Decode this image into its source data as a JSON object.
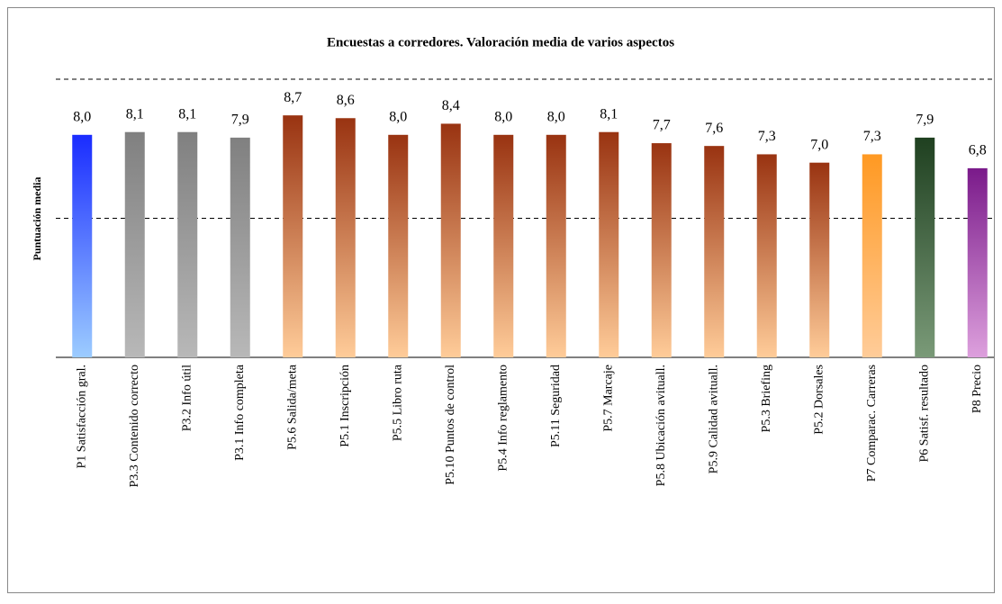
{
  "chart_data": {
    "type": "bar",
    "title": "Encuestas a corredores. Valoración media de varios aspectos",
    "y_label": "Puntuación media",
    "categories": [
      "P1 Satisfacción gral.",
      "P3.3 Contenido correcto",
      "P3.2 Info útil",
      "P3.1 Info completa",
      "P5.6 Salida/meta",
      "P5.1 Inscripción",
      "P5.5 Libro ruta",
      "P5.10 Puntos de control",
      "P5.4 Info reglamento",
      "P5.11 Seguridad",
      "P5.7 Marcaje",
      "P5.8 Ubicación avituall.",
      "P5.9 Calidad avituall.",
      "P5.3 Briefing",
      "P5.2 Dorsales",
      "P7 Comparac. Carreras",
      "P6 Satisf. resultado",
      "P8 Precio"
    ],
    "values": [
      8.0,
      8.1,
      8.1,
      7.9,
      8.7,
      8.6,
      8.0,
      8.4,
      8.0,
      8.0,
      8.1,
      7.7,
      7.6,
      7.3,
      7.0,
      7.3,
      7.9,
      6.8
    ],
    "value_labels": [
      "8,0",
      "8,1",
      "8,1",
      "7,9",
      "8,7",
      "8,6",
      "8,0",
      "8,4",
      "8,0",
      "8,0",
      "8,1",
      "7,7",
      "7,6",
      "7,3",
      "7,0",
      "7,3",
      "7,9",
      "6,8"
    ],
    "colors": [
      "#1a2cff",
      "#808080",
      "#808080",
      "#808080",
      "#993311",
      "#993311",
      "#993311",
      "#993311",
      "#993311",
      "#993311",
      "#993311",
      "#993311",
      "#993311",
      "#993311",
      "#993311",
      "#ff9922",
      "#1f4020",
      "#7a1a8a"
    ],
    "colors_bottom": [
      "#9cccff",
      "#b8b8b8",
      "#b8b8b8",
      "#b8b8b8",
      "#ffcc99",
      "#ffcc99",
      "#ffcc99",
      "#ffcc99",
      "#ffcc99",
      "#ffcc99",
      "#ffcc99",
      "#ffcc99",
      "#ffcc99",
      "#ffcc99",
      "#ffcc99",
      "#ffcc99",
      "#7a9a78",
      "#dda0dd"
    ],
    "ylim": [
      0,
      10
    ],
    "yticks": [
      5,
      10
    ],
    "grid": true
  }
}
